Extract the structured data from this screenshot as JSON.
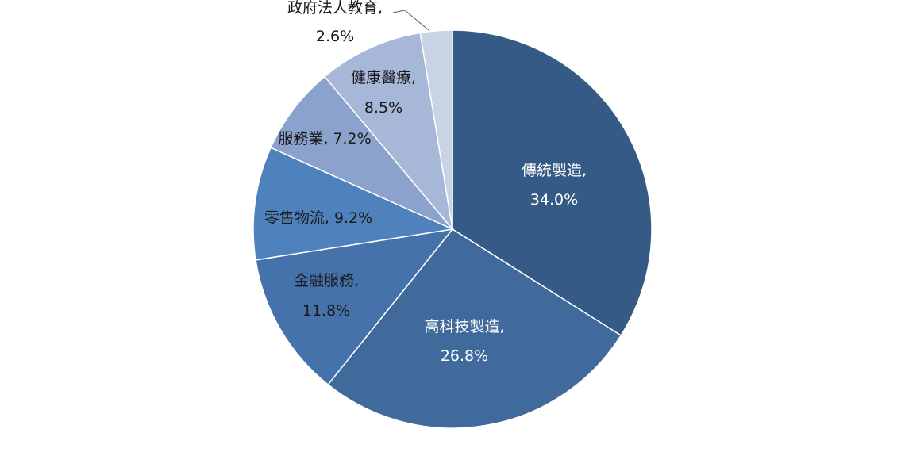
{
  "chart_data": {
    "type": "pie",
    "start_angle_deg": 0,
    "direction": "clockwise",
    "slices": [
      {
        "label": "傳統製造,",
        "percent_text": "34.0%",
        "value": 34.0,
        "color": "#365a86"
      },
      {
        "label": "高科技製造,",
        "percent_text": "26.8%",
        "value": 26.8,
        "color": "#40699c"
      },
      {
        "label": "金融服務,",
        "percent_text": "11.8%",
        "value": 11.8,
        "color": "#4572ab"
      },
      {
        "label": "零售物流, 9.2%",
        "percent_text": "",
        "value": 9.2,
        "color": "#4f81bd"
      },
      {
        "label": "服務業, 7.2%",
        "percent_text": "",
        "value": 7.2,
        "color": "#8aa2cc"
      },
      {
        "label": "健康醫療,",
        "percent_text": "8.5%",
        "value": 8.5,
        "color": "#a6b7d7"
      },
      {
        "label": "政府法人教育,",
        "percent_text": "2.6%",
        "value": 2.6,
        "color": "#c9d3e6"
      }
    ]
  }
}
